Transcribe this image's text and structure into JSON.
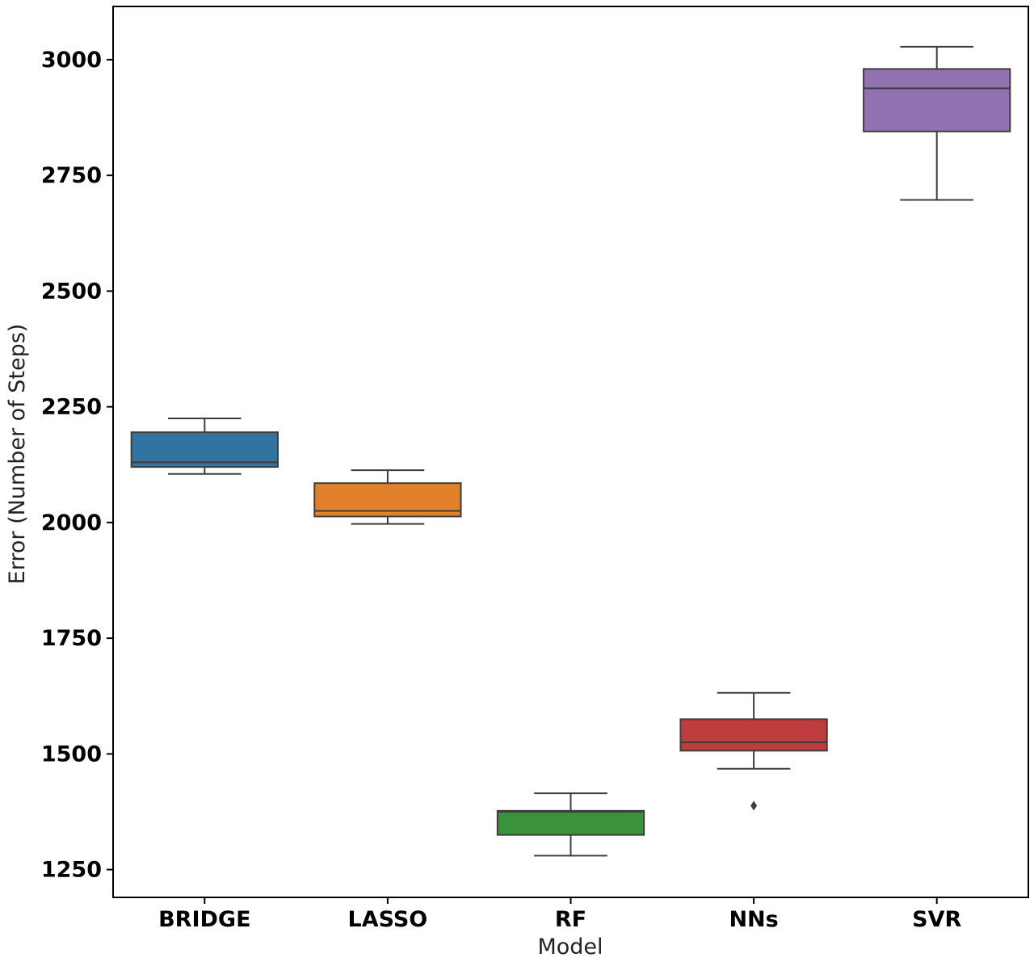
{
  "chart_data": {
    "type": "box",
    "title": "",
    "xlabel": "Model",
    "ylabel": "Error (Number of Steps)",
    "categories": [
      "BRIDGE",
      "LASSO",
      "RF",
      "NNs",
      "SVR"
    ],
    "ylim": [
      1190,
      3115
    ],
    "yticks": [
      1250,
      1500,
      1750,
      2000,
      2250,
      2500,
      2750,
      3000
    ],
    "grid": false,
    "boxes": [
      {
        "category": "BRIDGE",
        "color": "#3274a1",
        "whisker_low": 2105,
        "q1": 2120,
        "median": 2130,
        "q3": 2195,
        "whisker_high": 2225,
        "outliers": []
      },
      {
        "category": "LASSO",
        "color": "#e1812c",
        "whisker_low": 1997,
        "q1": 2013,
        "median": 2025,
        "q3": 2085,
        "whisker_high": 2113,
        "outliers": []
      },
      {
        "category": "RF",
        "color": "#3a923a",
        "whisker_low": 1280,
        "q1": 1325,
        "median": 1375,
        "q3": 1377,
        "whisker_high": 1415,
        "outliers": []
      },
      {
        "category": "NNs",
        "color": "#c03d3e",
        "whisker_low": 1468,
        "q1": 1507,
        "median": 1525,
        "q3": 1575,
        "whisker_high": 1632,
        "outliers": [
          1388
        ]
      },
      {
        "category": "SVR",
        "color": "#9372b2",
        "whisker_low": 2697,
        "q1": 2845,
        "median": 2938,
        "q3": 2980,
        "whisker_high": 3028,
        "outliers": []
      }
    ]
  }
}
